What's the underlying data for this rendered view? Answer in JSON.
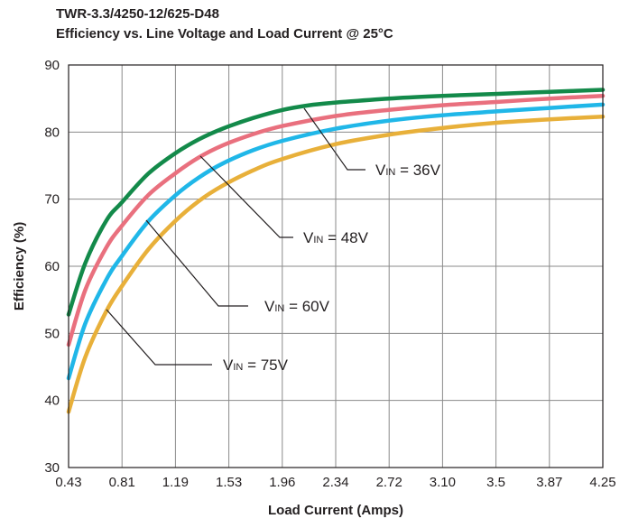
{
  "chart_data": {
    "type": "line",
    "title": "TWR-3.3/4250-12/625-D48",
    "subtitle": "Efficiency vs. Line Voltage and Load Current @ 25°C",
    "xlabel": "Load Current (Amps)",
    "ylabel": "Efficiency (%)",
    "x_tick_labels": [
      "0.43",
      "0.81",
      "1.19",
      "1.53",
      "1.96",
      "2.34",
      "2.72",
      "3.10",
      "3.5",
      "3.87",
      "4.25"
    ],
    "y_ticks": [
      30,
      40,
      50,
      60,
      70,
      80,
      90
    ],
    "ylim": [
      30,
      90
    ],
    "xlim": [
      0.43,
      4.25
    ],
    "grid": true,
    "series": [
      {
        "name": "VIN = 36V",
        "label_main": "V",
        "label_sub": "IN",
        "label_rest": " = 36V",
        "color": "#138a4a",
        "x": [
          0.43,
          0.55,
          0.7,
          0.81,
          1.0,
          1.19,
          1.36,
          1.53,
          1.75,
          1.96,
          2.15,
          2.34,
          2.72,
          3.1,
          3.5,
          3.87,
          4.25
        ],
        "y": [
          52.8,
          60.5,
          66.8,
          69.5,
          73.8,
          76.8,
          78.9,
          80.5,
          82.1,
          83.3,
          84.0,
          84.4,
          85.0,
          85.4,
          85.7,
          86.0,
          86.3
        ]
      },
      {
        "name": "VIN = 48V",
        "label_main": "V",
        "label_sub": "IN",
        "label_rest": " = 48V",
        "color": "#e9707e",
        "x": [
          0.43,
          0.55,
          0.7,
          0.81,
          1.0,
          1.19,
          1.36,
          1.53,
          1.75,
          1.96,
          2.34,
          2.72,
          3.1,
          3.5,
          3.87,
          4.25
        ],
        "y": [
          48.3,
          56.5,
          62.8,
          66.0,
          70.6,
          73.8,
          76.2,
          78.0,
          79.7,
          80.9,
          82.4,
          83.3,
          84.0,
          84.5,
          85.0,
          85.4
        ]
      },
      {
        "name": "VIN = 60V",
        "label_main": "V",
        "label_sub": "IN",
        "label_rest": " = 60V",
        "color": "#20b7e8",
        "x": [
          0.43,
          0.55,
          0.7,
          0.81,
          1.0,
          1.19,
          1.36,
          1.53,
          1.75,
          1.96,
          2.34,
          2.72,
          3.1,
          3.5,
          3.87,
          4.25
        ],
        "y": [
          43.3,
          51.5,
          58.0,
          61.5,
          66.7,
          70.5,
          73.2,
          75.3,
          77.3,
          78.7,
          80.5,
          81.7,
          82.5,
          83.1,
          83.6,
          84.1
        ]
      },
      {
        "name": "VIN = 75V",
        "label_main": "V",
        "label_sub": "IN",
        "label_rest": " = 75V",
        "color": "#e8b03a",
        "x": [
          0.43,
          0.55,
          0.7,
          0.81,
          1.0,
          1.19,
          1.36,
          1.53,
          1.75,
          1.96,
          2.34,
          2.72,
          3.1,
          3.5,
          3.87,
          4.25
        ],
        "y": [
          38.3,
          46.5,
          53.3,
          57.0,
          62.5,
          66.7,
          69.7,
          72.0,
          74.3,
          76.0,
          78.2,
          79.6,
          80.6,
          81.4,
          81.9,
          82.3
        ]
      }
    ]
  }
}
